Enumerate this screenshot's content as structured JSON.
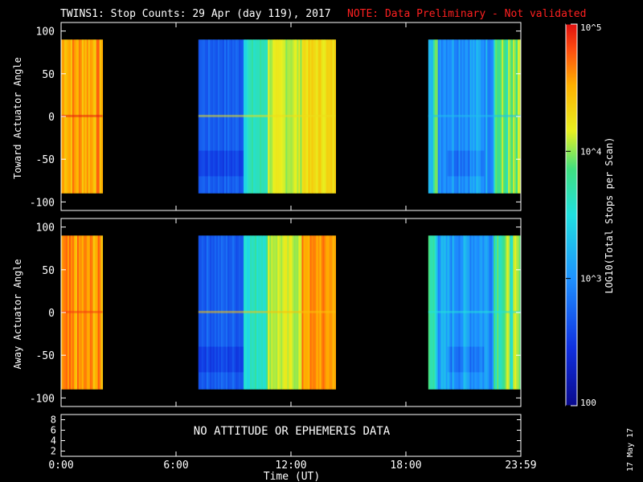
{
  "title": "TWINS1: Stop Counts: 29 Apr (day 119), 2017",
  "note": "NOTE: Data Preliminary - Not validated",
  "note_color": "#ff2020",
  "datestamp": "17 May 17",
  "no_data_message": "NO ATTITUDE OR EPHEMERIS DATA",
  "colorbar": {
    "label": "LOG10(Total Stops per Scan)",
    "ticks": [
      {
        "label": "100",
        "value": 100
      },
      {
        "label": "10^3",
        "value": 1000
      },
      {
        "label": "10^4",
        "value": 10000
      },
      {
        "label": "10^5",
        "value": 100000
      }
    ],
    "range": [
      100,
      100000
    ],
    "scale": "log",
    "colormap": "rainbow (blue low → red high)"
  },
  "chart_data": [
    {
      "type": "heatmap",
      "panel": "top",
      "ylabel": "Toward Actuator Angle",
      "ylim": [
        -110,
        110
      ],
      "yticks": [
        "100",
        "50",
        "0",
        "-50",
        "-100"
      ],
      "angle_range": [
        -90,
        90
      ],
      "xlim": [
        0,
        24
      ],
      "data_blocks": [
        {
          "start": "0:00",
          "end": "2:10",
          "level": "high (~10^4.5)"
        },
        {
          "start": "7:10",
          "end": "14:20",
          "level": "low→high (~10^2.5 rising to ~10^4.3)"
        },
        {
          "start": "19:10",
          "end": "23:59",
          "level": "mixed (~10^3 to ~10^4.2)"
        }
      ]
    },
    {
      "type": "heatmap",
      "panel": "middle",
      "ylabel": "Away Actuator Angle",
      "ylim": [
        -110,
        110
      ],
      "yticks": [
        "100",
        "50",
        "0",
        "-50",
        "-100"
      ],
      "angle_range": [
        -90,
        90
      ],
      "xlim": [
        0,
        24
      ],
      "data_blocks": [
        {
          "start": "0:00",
          "end": "2:10",
          "level": "high (~10^4.5)"
        },
        {
          "start": "7:10",
          "end": "14:20",
          "level": "low→high (~10^2.5 rising to ~10^4.6)"
        },
        {
          "start": "19:10",
          "end": "23:59",
          "level": "mixed (~10^3 to ~10^4.4)"
        }
      ]
    },
    {
      "type": "line",
      "panel": "bottom",
      "yticks": [
        "8",
        "6",
        "4",
        "2"
      ],
      "ylim": [
        1,
        9
      ],
      "xlim": [
        0,
        24
      ],
      "series": []
    }
  ],
  "xaxis": {
    "label": "Time (UT)",
    "ticks": [
      "0:00",
      "6:00",
      "12:00",
      "18:00",
      "23:59"
    ],
    "tick_hours": [
      0,
      6,
      12,
      18,
      24
    ]
  }
}
